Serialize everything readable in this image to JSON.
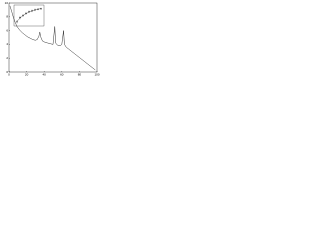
{
  "chart_data": [
    {
      "type": "line",
      "x": [
        1,
        3,
        5,
        7,
        9,
        12,
        15,
        18,
        21,
        24,
        27,
        30,
        32,
        34,
        35,
        36,
        38,
        41,
        44,
        47,
        50,
        52,
        53,
        55,
        58,
        60,
        62,
        63,
        65,
        68,
        71,
        74,
        77,
        80,
        83,
        86,
        89,
        92,
        95,
        98
      ],
      "values": [
        9.6,
        8.8,
        7.9,
        7.2,
        6.6,
        6.1,
        5.7,
        5.4,
        5.1,
        4.9,
        4.7,
        4.6,
        4.7,
        5.2,
        5.8,
        5.1,
        4.5,
        4.3,
        4.2,
        4.1,
        4.0,
        6.6,
        4.2,
        3.9,
        3.8,
        4.0,
        6.0,
        4.0,
        3.6,
        3.3,
        3.0,
        2.7,
        2.4,
        2.1,
        1.8,
        1.5,
        1.2,
        0.9,
        0.6,
        0.3
      ],
      "color": "#000000",
      "xlim": [
        0,
        100
      ],
      "xticks": [
        0,
        20,
        40,
        60,
        80,
        100
      ],
      "ylim": [
        0,
        10
      ],
      "yticks": [
        0,
        2,
        4,
        6,
        8,
        10
      ]
    },
    {
      "type": "scatter",
      "x": [
        1,
        2,
        3,
        4,
        5,
        6,
        7,
        8,
        9
      ],
      "values": [
        0.2,
        0.4,
        0.5,
        0.6,
        0.68,
        0.72,
        0.77,
        0.8,
        0.82
      ],
      "errors": [
        0.08,
        0.08,
        0.07,
        0.07,
        0.06,
        0.06,
        0.06,
        0.05,
        0.05
      ],
      "fit": [
        0.22,
        0.38,
        0.5,
        0.59,
        0.66,
        0.72,
        0.76,
        0.8,
        0.83
      ],
      "color": "#000000",
      "xlim": [
        0,
        10
      ],
      "ylim": [
        0,
        1
      ]
    }
  ]
}
